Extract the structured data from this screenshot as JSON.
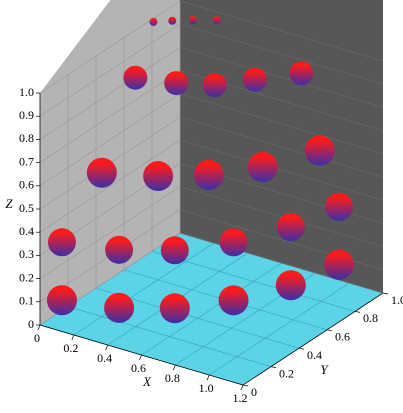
{
  "chart_data": {
    "type": "scatter3d",
    "xlabel": "X",
    "ylabel": "Y",
    "zlabel": "Z",
    "xlim": [
      0,
      1.2
    ],
    "ylim": [
      0,
      1
    ],
    "zlim": [
      0,
      1
    ],
    "xticks": [
      0,
      0.2,
      0.4,
      0.6,
      0.8,
      {
        "value": 1,
        "label": "1.0"
      },
      1.2
    ],
    "yticks": [
      0,
      0.2,
      0.4,
      0.6,
      0.8,
      {
        "value": 1,
        "label": "1.0"
      }
    ],
    "zticks": [
      0,
      0.1,
      0.2,
      0.3,
      0.4,
      0.5,
      0.6,
      0.7,
      0.8,
      0.9,
      {
        "value": 1,
        "label": "1.0"
      }
    ],
    "grid": true,
    "colors": [
      "#ff1a1a",
      "#3a2fa8"
    ],
    "x": [
      0.08,
      0.36,
      0.59,
      0.78,
      0.92,
      0.99,
      0.08,
      0.36,
      0.59,
      0.78,
      0.92,
      0.99,
      0.2,
      0.45,
      0.65,
      0.82,
      0.95,
      0.15,
      0.35,
      0.52,
      0.65,
      0.8,
      0.05,
      0.12,
      0.2,
      0.3
    ],
    "y": [
      0.06,
      0.13,
      0.25,
      0.44,
      0.68,
      0.94,
      0.06,
      0.13,
      0.25,
      0.44,
      0.68,
      0.94,
      0.2,
      0.3,
      0.42,
      0.6,
      0.85,
      0.5,
      0.55,
      0.62,
      0.75,
      0.9,
      0.75,
      0.8,
      0.85,
      0.9
    ],
    "z": [
      0.1,
      0.1,
      0.1,
      0.1,
      0.1,
      0.1,
      0.35,
      0.35,
      0.35,
      0.35,
      0.35,
      0.35,
      0.62,
      0.62,
      0.62,
      0.62,
      0.62,
      0.9,
      0.9,
      0.9,
      0.9,
      0.9,
      1.02,
      1.02,
      1.02,
      1.02
    ],
    "sizes": [
      15,
      15,
      15,
      15,
      15,
      15,
      14,
      14,
      14,
      14,
      14,
      14,
      15,
      15,
      15,
      15,
      15,
      12,
      12,
      12,
      12,
      12,
      4,
      4,
      4,
      4
    ]
  }
}
